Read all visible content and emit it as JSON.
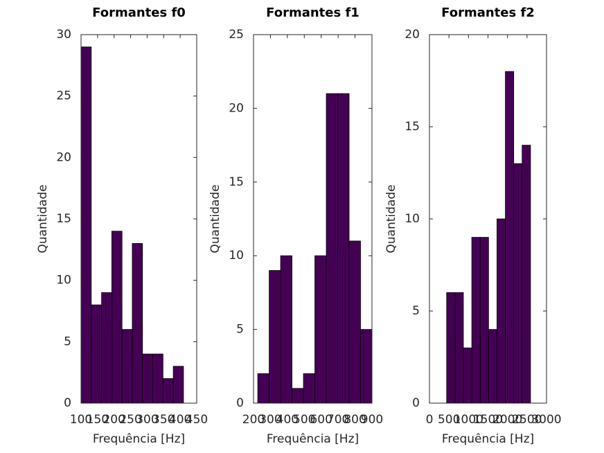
{
  "chart_data": [
    {
      "type": "histogram",
      "title": "Formantes f0",
      "x_label": "Frequência [Hz]",
      "y_label": "Quantidade",
      "bins": [
        100,
        131,
        162,
        193,
        224,
        255,
        286,
        317,
        348,
        379,
        410
      ],
      "values": [
        29,
        8,
        9,
        14,
        6,
        13,
        4,
        4,
        2,
        3
      ],
      "color": "#440154",
      "xlim": [
        100,
        450
      ],
      "xticks": [
        100,
        150,
        200,
        250,
        300,
        350,
        400,
        450
      ],
      "ylim": [
        0,
        30
      ],
      "yticks": [
        0,
        5,
        10,
        15,
        20,
        25,
        30
      ]
    },
    {
      "type": "histogram",
      "title": "Formantes f1",
      "x_label": "Frequência [Hz]",
      "y_label": "Quantidade",
      "bins": [
        225,
        292.5,
        360,
        427.5,
        495,
        562.5,
        630,
        697.5,
        765,
        832.5,
        900
      ],
      "values": [
        2,
        9,
        10,
        1,
        2,
        10,
        21,
        21,
        11,
        5
      ],
      "color": "#440154",
      "xlim": [
        200,
        900
      ],
      "xticks": [
        200,
        300,
        400,
        500,
        600,
        700,
        800,
        900
      ],
      "ylim": [
        0,
        25
      ],
      "yticks": [
        0,
        5,
        10,
        15,
        20,
        25
      ]
    },
    {
      "type": "histogram",
      "title": "Formantes f2",
      "x_label": "Frequência [Hz]",
      "y_label": "Quantidade",
      "bins": [
        440,
        655,
        870,
        1085,
        1300,
        1515,
        1730,
        1945,
        2160,
        2375,
        2590
      ],
      "values": [
        6,
        6,
        3,
        9,
        9,
        4,
        10,
        18,
        13,
        14
      ],
      "color": "#440154",
      "xlim": [
        0,
        3000
      ],
      "xticks": [
        0,
        500,
        1000,
        1500,
        2000,
        2500,
        3000
      ],
      "ylim": [
        0,
        20
      ],
      "yticks": [
        0,
        5,
        10,
        15,
        20
      ]
    }
  ]
}
